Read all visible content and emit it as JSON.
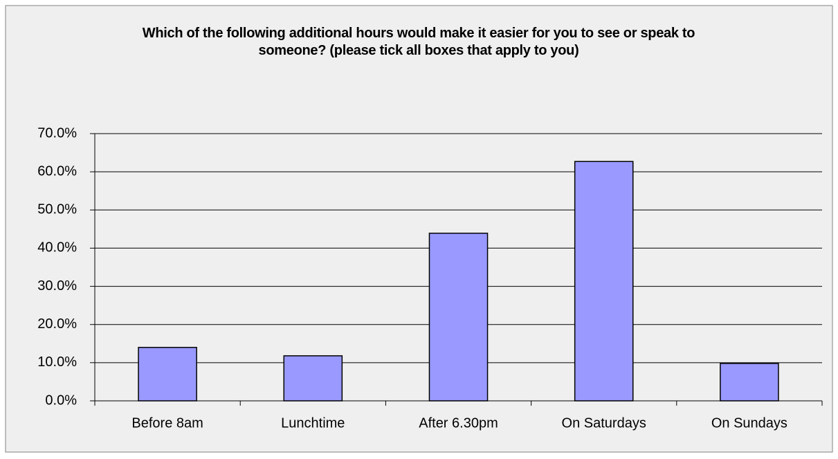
{
  "chart_data": {
    "type": "bar",
    "title": "Which of the following additional hours would make it easier for you to see or speak to someone? (please tick all boxes that apply to you)",
    "categories": [
      "Before 8am",
      "Lunchtime",
      "After 6.30pm",
      "On Saturdays",
      "On Sundays"
    ],
    "values": [
      14.0,
      11.8,
      43.9,
      62.7,
      9.8
    ],
    "color": "#9999ff",
    "ylim": [
      0,
      70
    ],
    "yticks": [
      {
        "value": 0,
        "label": "0.0%"
      },
      {
        "value": 10,
        "label": "10.0%"
      },
      {
        "value": 20,
        "label": "20.0%"
      },
      {
        "value": 30,
        "label": "30.0%"
      },
      {
        "value": 40,
        "label": "40.0%"
      },
      {
        "value": 50,
        "label": "50.0%"
      },
      {
        "value": 60,
        "label": "60.0%"
      },
      {
        "value": 70,
        "label": "70.0%"
      }
    ],
    "grid": true
  }
}
